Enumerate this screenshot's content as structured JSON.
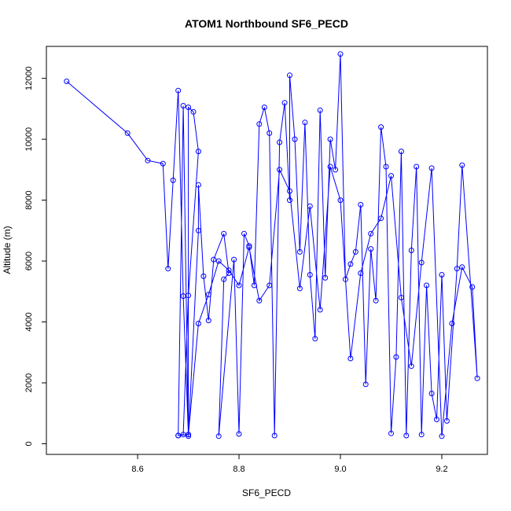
{
  "chart_data": {
    "type": "line",
    "title": "ATOM1 Northbound SF6_PECD",
    "xlabel": "SF6_PECD",
    "ylabel": "Altitude (m)",
    "xlim": [
      8.42,
      9.29
    ],
    "ylim": [
      -350,
      13050
    ],
    "xticks": [
      8.6,
      8.8,
      9.0,
      9.2
    ],
    "xtick_labels": [
      "8.6",
      "8.8",
      "9.0",
      "9.2"
    ],
    "yticks": [
      0,
      2000,
      4000,
      6000,
      8000,
      10000,
      12000
    ],
    "ytick_labels": [
      "0",
      "2000",
      "4000",
      "6000",
      "8000",
      "10000",
      "12000"
    ],
    "grid": false,
    "markers": "open-circle",
    "series": [
      {
        "color": "#0000ff",
        "x": [
          8.46,
          8.58,
          8.62,
          8.65,
          8.66,
          8.67,
          8.68,
          8.69,
          8.7,
          8.7,
          8.71,
          8.72,
          8.7,
          8.69,
          8.68,
          8.69,
          8.7,
          8.72,
          8.72,
          8.73,
          8.74,
          8.75,
          8.77,
          8.78,
          8.77,
          8.76,
          8.79,
          8.8,
          8.81,
          8.82,
          8.83,
          8.84,
          8.85,
          8.86,
          8.87,
          8.88,
          8.89,
          8.9,
          8.9,
          8.91,
          8.92,
          8.93,
          8.94,
          8.95,
          8.96,
          8.97,
          8.98,
          8.99,
          9.0,
          9.01,
          9.02,
          9.03,
          9.04,
          9.05,
          9.06,
          9.07,
          9.08,
          9.09,
          9.1,
          9.11,
          9.12,
          9.13,
          9.14,
          9.15,
          9.16,
          9.17,
          9.18,
          9.19,
          9.2,
          9.21,
          9.23,
          9.24,
          9.27,
          9.26,
          9.24,
          9.22,
          9.2,
          9.18,
          9.16,
          9.14,
          9.12,
          9.1,
          9.08,
          9.06,
          9.04,
          9.02,
          9.0,
          8.98,
          8.96,
          8.94,
          8.92,
          8.9,
          8.88,
          8.86,
          8.84,
          8.82,
          8.8,
          8.78,
          8.76,
          8.74,
          8.72,
          8.7,
          8.68
        ],
        "y": [
          11900,
          10200,
          9300,
          9200,
          5750,
          8650,
          11600,
          4850,
          300,
          11050,
          10900,
          9600,
          4870,
          300,
          270,
          11100,
          250,
          7000,
          8500,
          5500,
          4050,
          6050,
          6900,
          5600,
          5400,
          250,
          6050,
          320,
          6900,
          6500,
          5200,
          10500,
          11050,
          10200,
          270,
          9900,
          11200,
          8000,
          12100,
          10000,
          6300,
          10550,
          5550,
          3450,
          10950,
          5450,
          10000,
          9000,
          12800,
          5400,
          5900,
          6300,
          7850,
          1950,
          6400,
          4700,
          10400,
          9100,
          340,
          2850,
          9600,
          270,
          6350,
          9100,
          300,
          5200,
          1650,
          800,
          5550,
          750,
          5750,
          9150,
          2150,
          5150,
          5800,
          3950,
          250,
          9050,
          5950,
          2550,
          4800,
          8800,
          7400,
          6900,
          5600,
          2800,
          8000,
          9100,
          4400,
          7800,
          5100,
          8300,
          9000,
          5200,
          4700,
          6450,
          5200,
          5700,
          6000,
          4900,
          3950,
          300,
          270
        ]
      }
    ]
  }
}
